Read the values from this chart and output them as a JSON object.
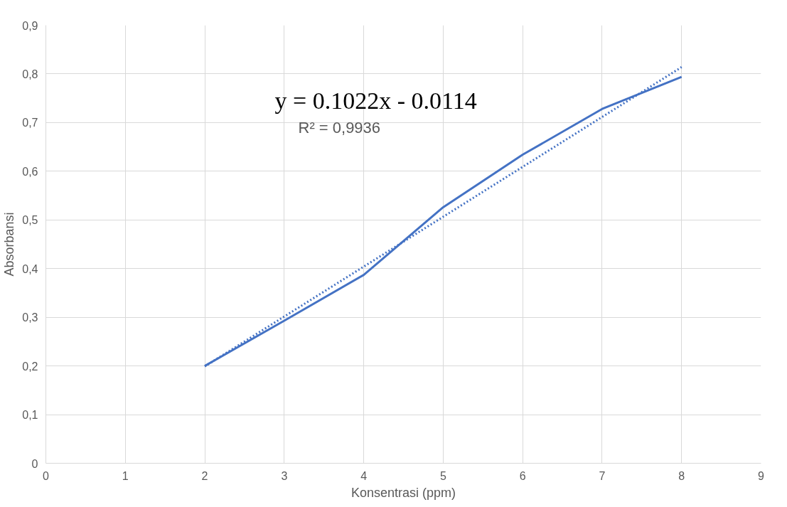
{
  "chart_data": {
    "type": "line",
    "xlabel": "Konsentrasi (ppm)",
    "ylabel": "Absorbansi",
    "series": [
      {
        "color": "#4472c4",
        "line_style": "solid",
        "x": [
          2,
          3,
          4,
          5,
          6,
          7,
          8
        ],
        "values": [
          0.2,
          0.293,
          0.387,
          0.526,
          0.634,
          0.728,
          0.794
        ]
      },
      {
        "color": "#4472c4",
        "line_style": "dotted",
        "x": [
          2,
          8
        ],
        "values": [
          0.199,
          0.814
        ]
      }
    ],
    "annotations": [
      "y = 0.1022x  - 0.0114",
      "R² = 0,9936"
    ],
    "xlim": [
      0,
      9
    ],
    "xticks": [
      0,
      1,
      2,
      3,
      4,
      5,
      6,
      7,
      8,
      9
    ],
    "ylim": [
      0,
      0.9
    ],
    "yticks": [
      0,
      {
        "value": 0.1,
        "label": "0,1"
      },
      {
        "value": 0.2,
        "label": "0,2"
      },
      {
        "value": 0.3,
        "label": "0,3"
      },
      {
        "value": 0.4,
        "label": "0,4"
      },
      {
        "value": 0.5,
        "label": "0,5"
      },
      {
        "value": 0.6,
        "label": "0,6"
      },
      {
        "value": 0.7,
        "label": "0,7"
      },
      {
        "value": 0.8,
        "label": "0,8"
      },
      {
        "value": 0.9,
        "label": "0,9"
      }
    ],
    "grid": true,
    "marker": "none"
  }
}
